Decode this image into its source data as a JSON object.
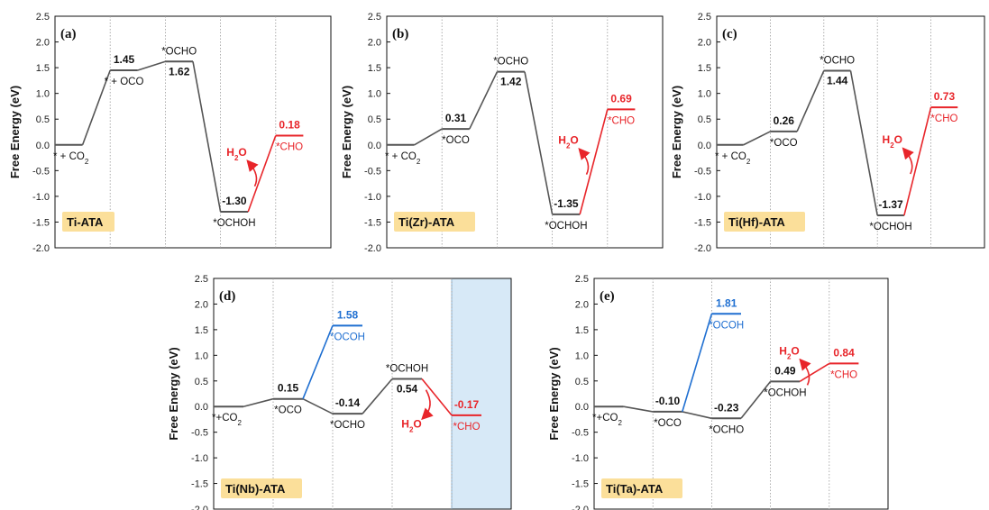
{
  "colors": {
    "black_path": "#555555",
    "red_path": "#e8252a",
    "blue_path": "#1f6fd1",
    "badge_bg": "#fbdf9a",
    "highlight_bg": "#d7e9f7",
    "divider": "#9a9a9a"
  },
  "ylabel": "Free Energy (eV)",
  "yticks": [
    "2.5",
    "2.0",
    "1.5",
    "1.0",
    "0.5",
    "0.0",
    "-0.5",
    "-1.0",
    "-1.5",
    "-2.0"
  ],
  "chart_data": [
    {
      "type": "line",
      "panel": "(a)",
      "title": "Ti-ATA",
      "ylabel": "Free Energy (eV)",
      "ylim": [
        -2.0,
        2.5
      ],
      "steps": 5,
      "levels": [
        {
          "step": 0,
          "y": 0.0,
          "state": "* + CO2",
          "value": "",
          "color": "black"
        },
        {
          "step": 1,
          "y": 1.45,
          "state": "* + OCO",
          "value": "1.45",
          "color": "black"
        },
        {
          "step": 2,
          "y": 1.62,
          "state": "*OCHO",
          "value": "1.62",
          "color": "black"
        },
        {
          "step": 3,
          "y": -1.3,
          "state": "*OCHOH",
          "value": "-1.30",
          "color": "black"
        },
        {
          "step": 4,
          "y": 0.18,
          "state": "*CHO",
          "value": "0.18",
          "color": "red"
        }
      ],
      "annotation": "H2O"
    },
    {
      "type": "line",
      "panel": "(b)",
      "title": "Ti(Zr)-ATA",
      "ylabel": "Free Energy (eV)",
      "ylim": [
        -2.0,
        2.5
      ],
      "steps": 5,
      "levels": [
        {
          "step": 0,
          "y": 0.0,
          "state": "* + CO2",
          "value": "",
          "color": "black"
        },
        {
          "step": 1,
          "y": 0.31,
          "state": "*OCO",
          "value": "0.31",
          "color": "black"
        },
        {
          "step": 2,
          "y": 1.42,
          "state": "*OCHO",
          "value": "1.42",
          "color": "black"
        },
        {
          "step": 3,
          "y": -1.35,
          "state": "*OCHOH",
          "value": "-1.35",
          "color": "black"
        },
        {
          "step": 4,
          "y": 0.69,
          "state": "*CHO",
          "value": "0.69",
          "color": "red"
        }
      ],
      "annotation": "H2O"
    },
    {
      "type": "line",
      "panel": "(c)",
      "title": "Ti(Hf)-ATA",
      "ylabel": "Free Energy (eV)",
      "ylim": [
        -2.0,
        2.5
      ],
      "steps": 5,
      "levels": [
        {
          "step": 0,
          "y": 0.0,
          "state": "* + CO2",
          "value": "",
          "color": "black"
        },
        {
          "step": 1,
          "y": 0.26,
          "state": "*OCO",
          "value": "0.26",
          "color": "black"
        },
        {
          "step": 2,
          "y": 1.44,
          "state": "*OCHO",
          "value": "1.44",
          "color": "black"
        },
        {
          "step": 3,
          "y": -1.37,
          "state": "*OCHOH",
          "value": "-1.37",
          "color": "black"
        },
        {
          "step": 4,
          "y": 0.73,
          "state": "*CHO",
          "value": "0.73",
          "color": "red"
        }
      ],
      "annotation": "H2O"
    },
    {
      "type": "line",
      "panel": "(d)",
      "title": "Ti(Nb)-ATA",
      "ylabel": "Free Energy (eV)",
      "ylim": [
        -2.0,
        2.5
      ],
      "steps": 5,
      "levels": [
        {
          "step": 0,
          "y": 0.0,
          "state": "*+CO2",
          "value": "",
          "color": "black"
        },
        {
          "step": 1,
          "y": 0.15,
          "state": "*OCO",
          "value": "0.15",
          "color": "black"
        },
        {
          "step": 2,
          "y": -0.14,
          "state": "*OCHO",
          "value": "-0.14",
          "color": "black"
        },
        {
          "step": 2,
          "y": 1.58,
          "state": "*OCOH",
          "value": "1.58",
          "color": "blue"
        },
        {
          "step": 3,
          "y": 0.54,
          "state": "*OCHOH",
          "value": "0.54",
          "color": "black"
        },
        {
          "step": 4,
          "y": -0.17,
          "state": "*CHO",
          "value": "-0.17",
          "color": "red"
        }
      ],
      "annotation": "H2O"
    },
    {
      "type": "line",
      "panel": "(e)",
      "title": "Ti(Ta)-ATA",
      "ylabel": "Free Energy (eV)",
      "ylim": [
        -2.0,
        2.5
      ],
      "steps": 5,
      "levels": [
        {
          "step": 0,
          "y": 0.0,
          "state": "*+CO2",
          "value": "",
          "color": "black"
        },
        {
          "step": 1,
          "y": -0.1,
          "state": "*OCO",
          "value": "-0.10",
          "color": "black"
        },
        {
          "step": 2,
          "y": -0.23,
          "state": "*OCHO",
          "value": "-0.23",
          "color": "black"
        },
        {
          "step": 2,
          "y": 1.81,
          "state": "*OCOH",
          "value": "1.81",
          "color": "blue"
        },
        {
          "step": 3,
          "y": 0.49,
          "state": "*OCHOH",
          "value": "0.49",
          "color": "black"
        },
        {
          "step": 4,
          "y": 0.84,
          "state": "*CHO",
          "value": "0.84",
          "color": "red"
        }
      ],
      "annotation": "H2O"
    }
  ]
}
